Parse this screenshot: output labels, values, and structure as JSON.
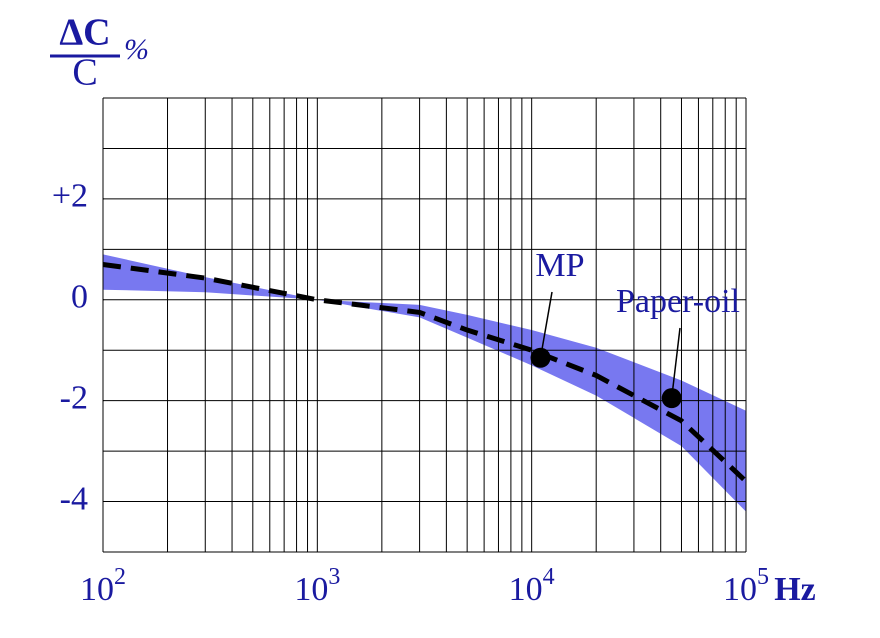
{
  "chart_data": {
    "type": "band-line",
    "y_label": {
      "numerator": "ΔC",
      "denominator": "C",
      "unit": "%"
    },
    "x_unit": "Hz",
    "x": [
      100,
      300,
      1000,
      3000,
      5000,
      10000,
      20000,
      50000,
      100000
    ],
    "band": {
      "color": "#7878f0",
      "upper": [
        0.9,
        0.45,
        0,
        -0.1,
        -0.3,
        -0.6,
        -0.95,
        -1.6,
        -2.2
      ],
      "lower": [
        0.2,
        0.15,
        0,
        -0.35,
        -0.75,
        -1.3,
        -1.9,
        -2.9,
        -4.2
      ]
    },
    "line": {
      "color": "#000000",
      "dashed": true,
      "values": [
        0.7,
        0.43,
        0,
        -0.25,
        -0.6,
        -1.0,
        -1.5,
        -2.4,
        -3.6
      ]
    },
    "annotations": [
      {
        "text": "MP",
        "x": 11000,
        "y": -1.15
      },
      {
        "text": "Paper-oil",
        "x": 45000,
        "y": -1.95
      }
    ],
    "xlim": [
      100,
      100000
    ],
    "log_x": true,
    "xticks": [
      {
        "value": 100,
        "label": "10",
        "exponent": "2"
      },
      {
        "value": 1000,
        "label": "10",
        "exponent": "3"
      },
      {
        "value": 10000,
        "label": "10",
        "exponent": "4"
      },
      {
        "value": 100000,
        "label": "10",
        "exponent": "5"
      }
    ],
    "ylim": [
      -5,
      4
    ],
    "yticks": [
      {
        "value": 2,
        "label": "+2"
      },
      0,
      -2,
      -4
    ],
    "y_grid": [
      -5,
      -4,
      -3,
      -2,
      -1,
      0,
      1,
      2,
      3,
      4
    ],
    "grid": true
  }
}
